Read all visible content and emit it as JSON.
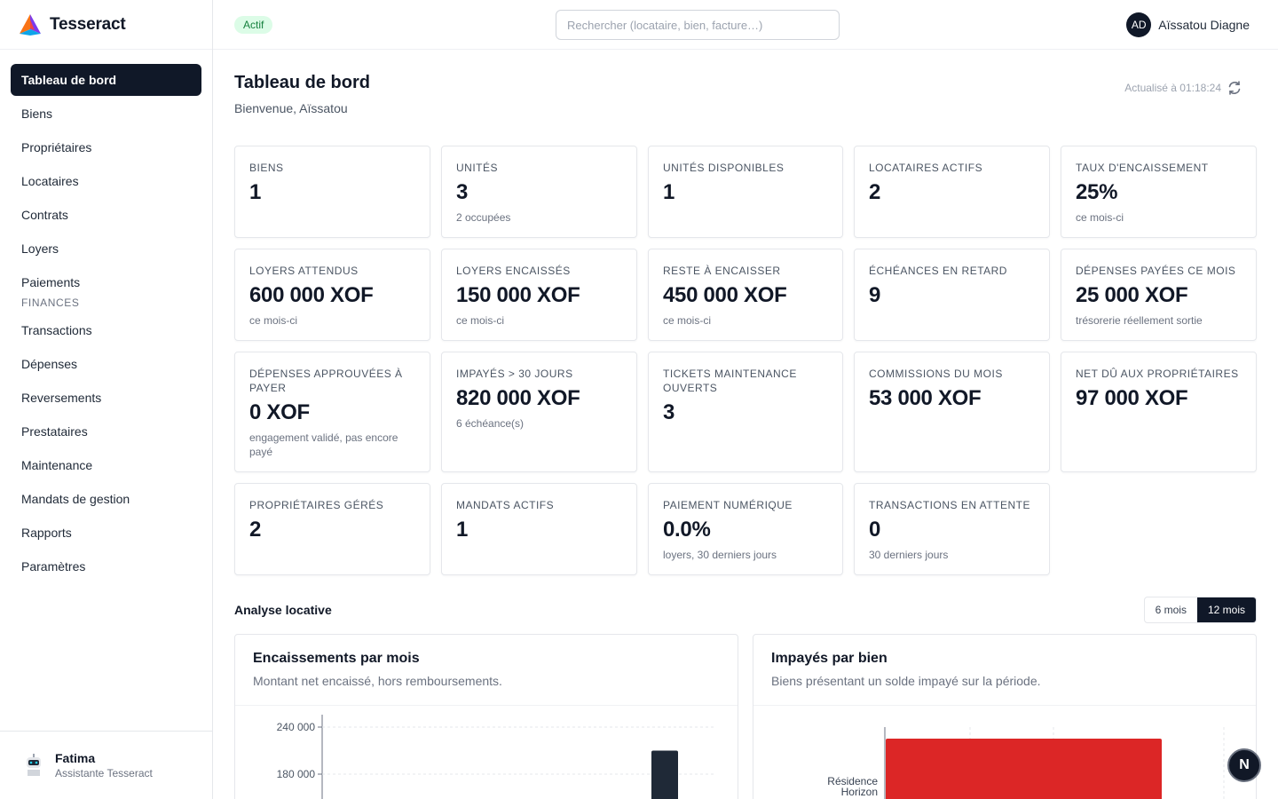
{
  "brand": {
    "name": "Tesseract"
  },
  "sidebar": {
    "items": [
      {
        "label": "Tableau de bord",
        "active": true
      },
      {
        "label": "Biens"
      },
      {
        "label": "Propriétaires"
      },
      {
        "label": "Locataires"
      },
      {
        "label": "Contrats"
      },
      {
        "label": "Loyers"
      },
      {
        "label": "Paiements"
      }
    ],
    "finance_section": "FINANCES",
    "finance_items": [
      {
        "label": "Transactions"
      },
      {
        "label": "Dépenses"
      },
      {
        "label": "Reversements"
      },
      {
        "label": "Prestataires"
      },
      {
        "label": "Maintenance"
      },
      {
        "label": "Mandats de gestion"
      },
      {
        "label": "Rapports"
      },
      {
        "label": "Paramètres"
      }
    ],
    "assistant": {
      "name": "Fatima",
      "role": "Assistante Tesseract"
    }
  },
  "header": {
    "status_badge": "Actif",
    "search_placeholder": "Rechercher (locataire, bien, facture…)",
    "user_initials": "AD",
    "user_name": "Aïssatou Diagne"
  },
  "page": {
    "title": "Tableau de bord",
    "subtitle": "Bienvenue, Aïssatou",
    "refreshed": "Actualisé à 01:18:24"
  },
  "kpis": [
    {
      "label": "BIENS",
      "value": "1",
      "note": ""
    },
    {
      "label": "UNITÉS",
      "value": "3",
      "note": "2 occupées"
    },
    {
      "label": "UNITÉS DISPONIBLES",
      "value": "1",
      "note": ""
    },
    {
      "label": "LOCATAIRES ACTIFS",
      "value": "2",
      "note": ""
    },
    {
      "label": "TAUX D'ENCAISSEMENT",
      "value": "25%",
      "note": "ce mois-ci"
    },
    {
      "label": "LOYERS ATTENDUS",
      "value": "600 000 XOF",
      "note": "ce mois-ci"
    },
    {
      "label": "LOYERS ENCAISSÉS",
      "value": "150 000 XOF",
      "note": "ce mois-ci"
    },
    {
      "label": "RESTE À ENCAISSER",
      "value": "450 000 XOF",
      "note": "ce mois-ci"
    },
    {
      "label": "ÉCHÉANCES EN RETARD",
      "value": "9",
      "note": ""
    },
    {
      "label": "DÉPENSES PAYÉES CE MOIS",
      "value": "25 000 XOF",
      "note": "trésorerie réellement sortie"
    },
    {
      "label": "DÉPENSES APPROUVÉES À PAYER",
      "value": "0 XOF",
      "note": "engagement validé, pas encore payé"
    },
    {
      "label": "IMPAYÉS > 30 JOURS",
      "value": "820 000 XOF",
      "note": "6 échéance(s)"
    },
    {
      "label": "TICKETS MAINTENANCE OUVERTS",
      "value": "3",
      "note": ""
    },
    {
      "label": "COMMISSIONS DU MOIS",
      "value": "53 000 XOF",
      "note": ""
    },
    {
      "label": "NET DÛ AUX PROPRIÉTAIRES",
      "value": "97 000 XOF",
      "note": ""
    },
    {
      "label": "PROPRIÉTAIRES GÉRÉS",
      "value": "2",
      "note": ""
    },
    {
      "label": "MANDATS ACTIFS",
      "value": "1",
      "note": ""
    },
    {
      "label": "PAIEMENT NUMÉRIQUE",
      "value": "0.0%",
      "note": "loyers, 30 derniers jours"
    },
    {
      "label": "TRANSACTIONS EN ATTENTE",
      "value": "0",
      "note": "30 derniers jours"
    }
  ],
  "analysis": {
    "title": "Analyse locative",
    "range_options": [
      "6 mois",
      "12 mois"
    ],
    "range_selected": "12 mois"
  },
  "chart_data": [
    {
      "type": "bar",
      "title": "Encaissements par mois",
      "subtitle": "Montant net encaissé, hors remboursements.",
      "y_ticks": [
        "240 000",
        "180 000"
      ],
      "ylim_visible": [
        180000,
        240000
      ],
      "grid": true,
      "series": [
        {
          "values": [
            210000
          ]
        }
      ],
      "bar_color": "#1f2937"
    },
    {
      "type": "bar",
      "orientation": "horizontal",
      "title": "Impayés par bien",
      "subtitle": "Biens présentant un solde impayé sur la période.",
      "categories": [
        "Résidence Horizon"
      ],
      "bar_color": "#dc2626"
    }
  ],
  "fab": {
    "label": "N"
  }
}
